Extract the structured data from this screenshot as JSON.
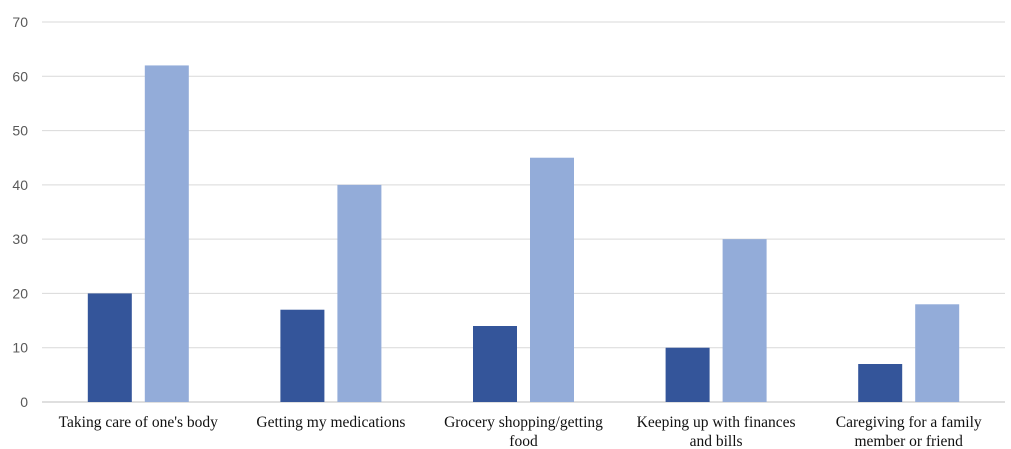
{
  "chart_data": {
    "type": "bar",
    "title": "",
    "xlabel": "",
    "ylabel": "",
    "ylim": [
      0,
      70
    ],
    "yticks": [
      0,
      10,
      20,
      30,
      40,
      50,
      60,
      70
    ],
    "grid": true,
    "legend": "none",
    "categories": [
      [
        "Taking care of one's body"
      ],
      [
        "Getting my medications"
      ],
      [
        "Grocery shopping/getting",
        "food"
      ],
      [
        "Keeping up with finances",
        "and bills"
      ],
      [
        "Caregiving for a family",
        "member or friend"
      ]
    ],
    "series": [
      {
        "color": "#34559a",
        "values": [
          20,
          17,
          14,
          10,
          7
        ]
      },
      {
        "color": "#93acd9",
        "values": [
          62,
          40,
          45,
          30,
          18
        ]
      }
    ]
  }
}
